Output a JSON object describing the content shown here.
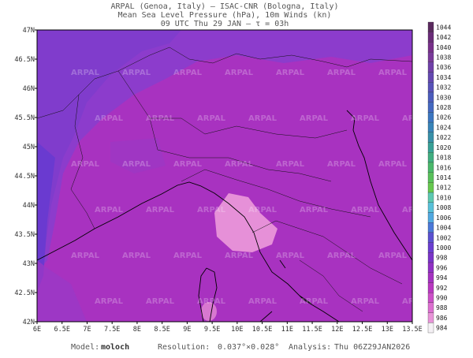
{
  "header": {
    "line1": "ARPAL (Genoa, Italy)  –  ISAC-CNR (Bologna, Italy)",
    "line2": "Mean Sea Level Pressure (hPa), 10m Winds (kn)",
    "line3": "09 UTC Thu 29 JAN  –  τ = 03h"
  },
  "map": {
    "lon_labels": [
      "6E",
      "6.5E",
      "7E",
      "7.5E",
      "8E",
      "8.5E",
      "9E",
      "9.5E",
      "10E",
      "10.5E",
      "11E",
      "11.5E",
      "12E",
      "12.5E",
      "13E",
      "13.5E"
    ],
    "lat_labels": [
      "47N",
      "46.5N",
      "46N",
      "45.5N",
      "45N",
      "44.5N",
      "44N",
      "43.5N",
      "43N",
      "42.5N",
      "42N"
    ],
    "watermark": "ARPAL"
  },
  "colorbar": {
    "labels": [
      "1044",
      "1042",
      "1040",
      "1038",
      "1036",
      "1034",
      "1032",
      "1030",
      "1028",
      "1026",
      "1024",
      "1022",
      "1020",
      "1018",
      "1016",
      "1014",
      "1012",
      "1010",
      "1008",
      "1006",
      "1004",
      "1002",
      "1000",
      "998",
      "996",
      "994",
      "992",
      "990",
      "988",
      "986",
      "984"
    ],
    "colors": [
      "#5a2a5e",
      "#6a2c78",
      "#78308a",
      "#7a3a9a",
      "#7040a8",
      "#6448b0",
      "#5852b8",
      "#4c5cbc",
      "#4468c0",
      "#3c76c0",
      "#3884b8",
      "#3890a8",
      "#38a096",
      "#40ae80",
      "#4ab86a",
      "#58c05a",
      "#66c84e",
      "#5cc8b0",
      "#58c0d8",
      "#50a8e0",
      "#4a78d8",
      "#5a50d0",
      "#6a3ed0",
      "#7a34c8",
      "#9030c4",
      "#a432c0",
      "#b838c0",
      "#cc50c8",
      "#dc70d0",
      "#e894d8",
      "#f4f0f4"
    ]
  },
  "footer": {
    "model_label": "Model:",
    "model": "moloch",
    "resolution_label": "Resolution:",
    "resolution": "0.037°×0.028°",
    "analysis_label": "Analysis:",
    "analysis": "Thu 06Z29JAN2026"
  }
}
